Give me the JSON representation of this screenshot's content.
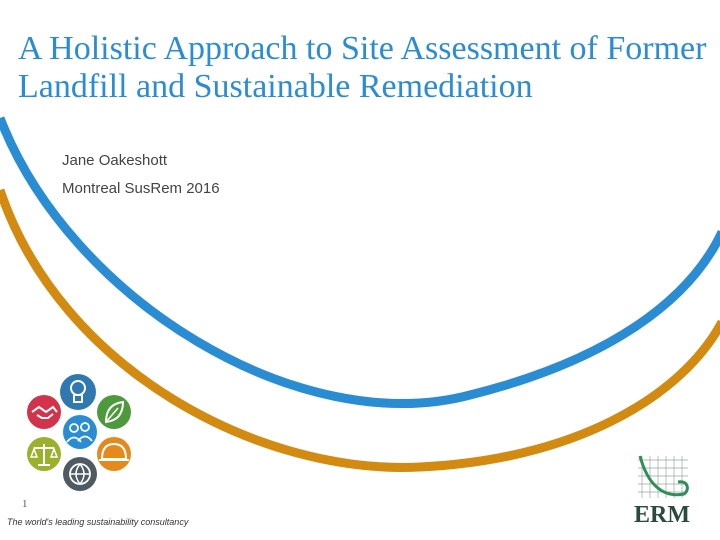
{
  "title": "A Holistic Approach to Site Assessment of Former Landfill and Sustainable Remediation",
  "presenter": "Jane Oakeshott",
  "event": "Montreal SusRem 2016",
  "page_number": "1",
  "tagline": "The world's leading sustainability consultancy",
  "logo": {
    "text": "ERM",
    "color": "#2a4a3c"
  },
  "colors": {
    "accent_blue": "#2a8dd4",
    "accent_orange": "#d38a10",
    "title": "#2a8dd4"
  },
  "sustainability_icons": [
    {
      "name": "lightbulb-icon",
      "color": "#2f79b0"
    },
    {
      "name": "leaf-icon",
      "color": "#4c9a3c"
    },
    {
      "name": "hard-hat-icon",
      "color": "#e48a1c"
    },
    {
      "name": "globe-icon",
      "color": "#4e5b63"
    },
    {
      "name": "scales-icon",
      "color": "#9bb02b"
    },
    {
      "name": "handshake-icon",
      "color": "#d1334a"
    },
    {
      "name": "people-icon",
      "color": "#2a8dd4"
    }
  ]
}
